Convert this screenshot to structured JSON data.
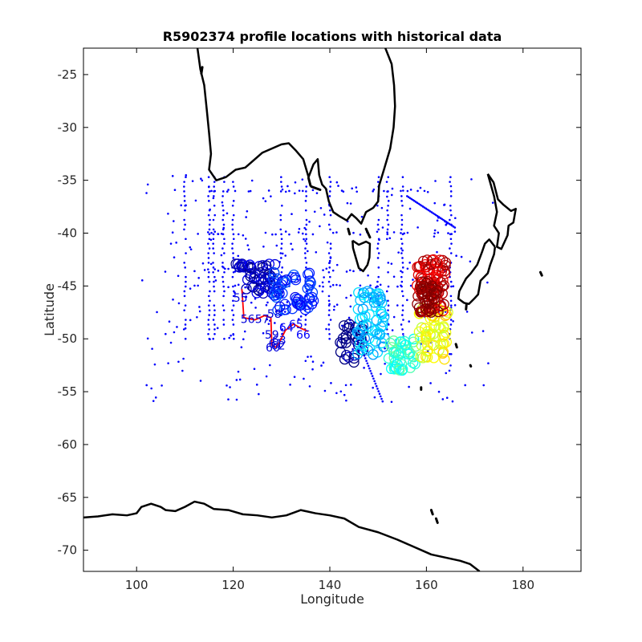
{
  "chart_data": {
    "type": "scatter",
    "title": "R5902374 profile locations with historical data",
    "xlabel": "Longitude",
    "ylabel": "Latitude",
    "xlim": [
      89,
      192
    ],
    "ylim": [
      -72,
      -22.5
    ],
    "xticks": [
      100,
      120,
      140,
      160,
      180
    ],
    "yticks": [
      -25,
      -30,
      -35,
      -40,
      -45,
      -50,
      -55,
      -60,
      -65,
      -70
    ],
    "grid": false,
    "colors": {
      "historical": "#0000ff",
      "track": "#ff0000",
      "coast": "#000000"
    },
    "coastlines": [
      [
        [
          112.6,
          -22.5
        ],
        [
          113.2,
          -24.5
        ],
        [
          114.0,
          -26.0
        ],
        [
          114.5,
          -28.2
        ],
        [
          115.0,
          -30.5
        ],
        [
          115.4,
          -32.5
        ],
        [
          115.0,
          -34.0
        ],
        [
          116.5,
          -35.0
        ],
        [
          118.5,
          -34.7
        ],
        [
          120.5,
          -34.0
        ],
        [
          122.5,
          -33.8
        ],
        [
          124.0,
          -33.2
        ],
        [
          126.0,
          -32.4
        ],
        [
          128.0,
          -32.0
        ],
        [
          130.0,
          -31.6
        ],
        [
          131.5,
          -31.5
        ],
        [
          133.0,
          -32.2
        ],
        [
          134.5,
          -33.0
        ],
        [
          135.6,
          -34.7
        ],
        [
          136.6,
          -33.5
        ],
        [
          137.5,
          -33.0
        ],
        [
          137.8,
          -34.5
        ],
        [
          138.4,
          -35.4
        ],
        [
          139.2,
          -35.8
        ],
        [
          139.8,
          -37.0
        ],
        [
          140.7,
          -38.0
        ],
        [
          142.0,
          -38.4
        ],
        [
          143.5,
          -38.8
        ],
        [
          144.5,
          -38.2
        ],
        [
          145.5,
          -38.6
        ],
        [
          146.5,
          -39.1
        ],
        [
          147.5,
          -38.0
        ],
        [
          149.0,
          -37.6
        ],
        [
          150.0,
          -37.0
        ],
        [
          150.2,
          -35.5
        ],
        [
          151.2,
          -34.0
        ],
        [
          152.5,
          -32.0
        ],
        [
          153.2,
          -30.0
        ],
        [
          153.5,
          -28.0
        ],
        [
          153.3,
          -26.0
        ],
        [
          152.8,
          -24.0
        ],
        [
          151.5,
          -22.5
        ]
      ],
      [
        [
          144.7,
          -40.7
        ],
        [
          146.0,
          -41.1
        ],
        [
          147.5,
          -40.8
        ],
        [
          148.3,
          -41.0
        ],
        [
          148.2,
          -42.3
        ],
        [
          147.8,
          -43.0
        ],
        [
          146.9,
          -43.6
        ],
        [
          146.0,
          -43.3
        ],
        [
          145.3,
          -42.2
        ],
        [
          144.8,
          -41.4
        ],
        [
          144.7,
          -40.7
        ]
      ],
      [
        [
          172.7,
          -34.4
        ],
        [
          173.9,
          -35.2
        ],
        [
          174.8,
          -36.8
        ],
        [
          175.9,
          -37.3
        ],
        [
          177.5,
          -37.9
        ],
        [
          178.5,
          -37.7
        ],
        [
          178.0,
          -39.0
        ],
        [
          177.0,
          -39.3
        ],
        [
          176.8,
          -40.2
        ],
        [
          175.5,
          -41.5
        ],
        [
          174.6,
          -41.3
        ],
        [
          175.0,
          -40.0
        ],
        [
          174.0,
          -39.3
        ],
        [
          174.6,
          -38.0
        ],
        [
          174.0,
          -36.5
        ],
        [
          172.7,
          -34.4
        ]
      ],
      [
        [
          174.2,
          -41.3
        ],
        [
          173.0,
          -40.6
        ],
        [
          172.1,
          -41.0
        ],
        [
          171.5,
          -41.8
        ],
        [
          170.5,
          -43.0
        ],
        [
          169.2,
          -43.8
        ],
        [
          168.2,
          -44.3
        ],
        [
          166.8,
          -45.5
        ],
        [
          166.6,
          -46.2
        ],
        [
          167.8,
          -46.6
        ],
        [
          168.8,
          -46.7
        ],
        [
          169.9,
          -46.2
        ],
        [
          170.7,
          -45.8
        ],
        [
          171.2,
          -44.5
        ],
        [
          172.7,
          -43.8
        ],
        [
          173.2,
          -43.0
        ],
        [
          174.0,
          -42.0
        ],
        [
          174.2,
          -41.3
        ]
      ],
      [
        [
          89,
          -66.9
        ],
        [
          92,
          -66.8
        ],
        [
          95,
          -66.6
        ],
        [
          98,
          -66.7
        ],
        [
          100,
          -66.5
        ],
        [
          101,
          -65.9
        ],
        [
          103,
          -65.6
        ],
        [
          105,
          -65.9
        ],
        [
          106,
          -66.2
        ],
        [
          108,
          -66.3
        ],
        [
          110,
          -65.9
        ],
        [
          112,
          -65.4
        ],
        [
          114,
          -65.6
        ],
        [
          116,
          -66.1
        ],
        [
          119,
          -66.2
        ],
        [
          122,
          -66.6
        ],
        [
          125,
          -66.7
        ],
        [
          128,
          -66.9
        ],
        [
          131,
          -66.7
        ],
        [
          134,
          -66.2
        ],
        [
          137,
          -66.5
        ],
        [
          140,
          -66.7
        ],
        [
          143,
          -67.0
        ],
        [
          146,
          -67.8
        ],
        [
          150,
          -68.3
        ],
        [
          154,
          -69.0
        ],
        [
          157,
          -69.6
        ],
        [
          161,
          -70.4
        ],
        [
          165,
          -70.8
        ],
        [
          167,
          -71.0
        ],
        [
          169,
          -71.3
        ],
        [
          171,
          -72.0
        ]
      ]
    ],
    "islands": [
      [
        [
          113.4,
          -24.9
        ],
        [
          113.6,
          -24.3
        ]
      ],
      [
        [
          135.6,
          -34.8
        ],
        [
          136.0,
          -35.5
        ]
      ],
      [
        [
          136.2,
          -35.6
        ],
        [
          138.0,
          -35.9
        ]
      ],
      [
        [
          143.8,
          -39.6
        ],
        [
          144.1,
          -40.1
        ]
      ],
      [
        [
          147.5,
          -39.6
        ],
        [
          148.3,
          -40.4
        ]
      ],
      [
        [
          158.9,
          -54.6
        ],
        [
          158.9,
          -54.8
        ]
      ],
      [
        [
          168.3,
          -46.7
        ],
        [
          168.2,
          -47.2
        ]
      ],
      [
        [
          166.1,
          -50.5
        ],
        [
          166.3,
          -50.8
        ]
      ],
      [
        [
          169.1,
          -52.5
        ],
        [
          169.2,
          -52.6
        ]
      ],
      [
        [
          183.6,
          -43.7
        ],
        [
          183.9,
          -44.0
        ]
      ],
      [
        [
          161.0,
          -66.2
        ],
        [
          161.3,
          -66.6
        ]
      ],
      [
        [
          162.0,
          -67.0
        ],
        [
          162.3,
          -67.4
        ]
      ]
    ],
    "historical_grid": {
      "lon_tracks": [
        110,
        115,
        116,
        118,
        120,
        130,
        135,
        140,
        150,
        152,
        155,
        165
      ],
      "lat_tracks": [
        -36,
        -40,
        -43.5,
        -45
      ],
      "lat_range": [
        -50,
        -34.5
      ]
    },
    "float_clusters": [
      {
        "lon": 125,
        "lat": -44.3,
        "spread": [
          4.5,
          1.4
        ],
        "n": 55,
        "hue": 0.62
      },
      {
        "lon": 132.5,
        "lat": -45.5,
        "spread": [
          4.5,
          1.8
        ],
        "n": 55,
        "hue": 0.55
      },
      {
        "lon": 144.5,
        "lat": -50.4,
        "spread": [
          2.5,
          2.0
        ],
        "n": 30,
        "hue": 0.65
      },
      {
        "lon": 148.5,
        "lat": -48.5,
        "spread": [
          3.0,
          3.0
        ],
        "n": 60,
        "hue": 0.45
      },
      {
        "lon": 155.0,
        "lat": -51.5,
        "spread": [
          3.0,
          1.5
        ],
        "n": 45,
        "hue": 0.38
      },
      {
        "lon": 161.5,
        "lat": -49.5,
        "spread": [
          3.0,
          2.5
        ],
        "n": 55,
        "hue": 0.25
      },
      {
        "lon": 161.0,
        "lat": -45.0,
        "spread": [
          3.0,
          2.5
        ],
        "n": 80,
        "hue": 0.05
      },
      {
        "lon": 160.5,
        "lat": -46.0,
        "spread": [
          2.0,
          1.5
        ],
        "n": 45,
        "hue": 0.0
      }
    ],
    "profile_labels": [
      {
        "lon": 121.5,
        "lat": -46.5,
        "text": "55",
        "hue": 0.6
      },
      {
        "lon": 123,
        "lat": -48.5,
        "text": "56",
        "hue": 0.6
      },
      {
        "lon": 126,
        "lat": -48.5,
        "text": "57",
        "hue": 0.6
      },
      {
        "lon": 128.5,
        "lat": -48,
        "text": "58",
        "hue": 0.6
      },
      {
        "lon": 128,
        "lat": -50,
        "text": "59",
        "hue": 0.6
      },
      {
        "lon": 128.2,
        "lat": -51.2,
        "text": "60",
        "hue": 0.6
      },
      {
        "lon": 128.8,
        "lat": -50.8,
        "text": "61",
        "hue": 0.6
      },
      {
        "lon": 129.3,
        "lat": -51,
        "text": "62",
        "hue": 0.6
      },
      {
        "lon": 129.5,
        "lat": -50.5,
        "text": "63",
        "hue": 0.6
      },
      {
        "lon": 131,
        "lat": -49.3,
        "text": "64",
        "hue": 0.58
      },
      {
        "lon": 133,
        "lat": -49,
        "text": "65",
        "hue": 0.58
      },
      {
        "lon": 134.5,
        "lat": -50,
        "text": "66",
        "hue": 0.58
      }
    ],
    "float_track": [
      [
        121.8,
        -45.3
      ],
      [
        122.2,
        -48.0
      ],
      [
        124.5,
        -48.2
      ],
      [
        126.5,
        -47.8
      ],
      [
        127.8,
        -48.0
      ],
      [
        128.0,
        -50.6
      ],
      [
        128.8,
        -50.8
      ],
      [
        129.5,
        -50.4
      ],
      [
        130.8,
        -49.2
      ],
      [
        132.5,
        -48.6
      ],
      [
        134.0,
        -49.0
      ],
      [
        135.5,
        -49.3
      ]
    ]
  }
}
